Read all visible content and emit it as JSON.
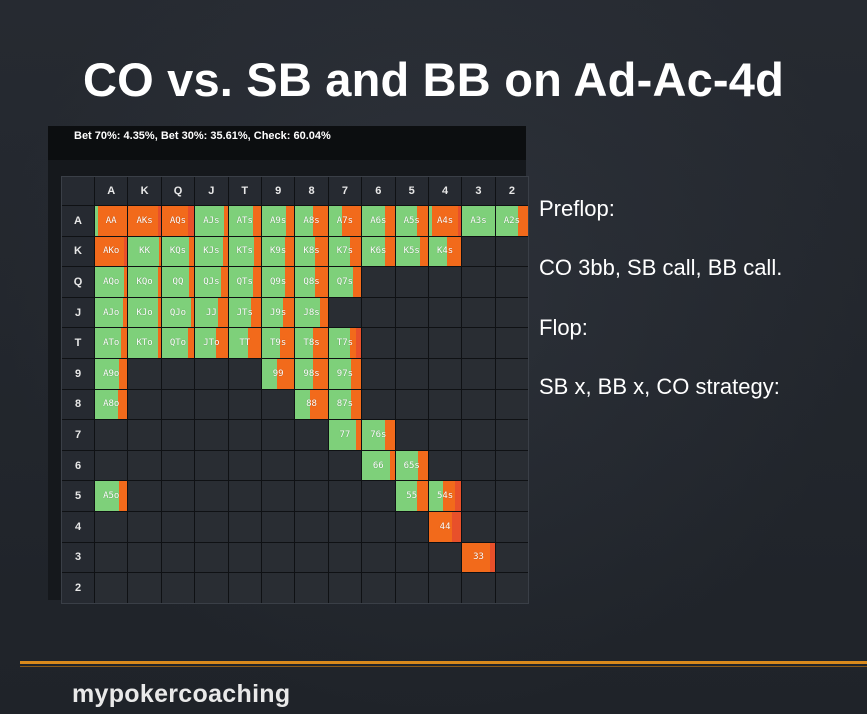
{
  "slide": {
    "title": "CO vs. SB and BB on Ad-Ac-4d",
    "brand": "mypokercoaching"
  },
  "colors": {
    "bet70": "#e8502a",
    "bet30": "#f26a1b",
    "check": "#7ed07a",
    "accent_line": "#d98a1c"
  },
  "strategy_panel": {
    "summary": "Bet 70%: 4.35%, Bet 30%: 35.61%, Check: 60.04%",
    "ranks": [
      "A",
      "K",
      "Q",
      "J",
      "T",
      "9",
      "8",
      "7",
      "6",
      "5",
      "4",
      "3",
      "2"
    ],
    "cells": [
      {
        "hand": "AA",
        "r": 0,
        "c": 0,
        "mix": [
          0,
          0.9,
          0.1
        ]
      },
      {
        "hand": "AKs",
        "r": 0,
        "c": 1,
        "mix": [
          0.1,
          0.9,
          0
        ]
      },
      {
        "hand": "AQs",
        "r": 0,
        "c": 2,
        "mix": [
          0.2,
          0.8,
          0
        ]
      },
      {
        "hand": "AJs",
        "r": 0,
        "c": 3,
        "mix": [
          0,
          0.1,
          0.9
        ]
      },
      {
        "hand": "ATs",
        "r": 0,
        "c": 4,
        "mix": [
          0,
          0.25,
          0.75
        ]
      },
      {
        "hand": "A9s",
        "r": 0,
        "c": 5,
        "mix": [
          0,
          0.25,
          0.75
        ]
      },
      {
        "hand": "A8s",
        "r": 0,
        "c": 6,
        "mix": [
          0,
          0.45,
          0.55
        ]
      },
      {
        "hand": "A7s",
        "r": 0,
        "c": 7,
        "mix": [
          0,
          0.6,
          0.4
        ]
      },
      {
        "hand": "A6s",
        "r": 0,
        "c": 8,
        "mix": [
          0,
          0.3,
          0.7
        ]
      },
      {
        "hand": "A5s",
        "r": 0,
        "c": 9,
        "mix": [
          0,
          0.35,
          0.65
        ]
      },
      {
        "hand": "A4s",
        "r": 0,
        "c": 10,
        "mix": [
          0.1,
          0.8,
          0.1
        ]
      },
      {
        "hand": "A3s",
        "r": 0,
        "c": 11,
        "mix": [
          0,
          0,
          1
        ]
      },
      {
        "hand": "A2s",
        "r": 0,
        "c": 12,
        "mix": [
          0,
          0.3,
          0.7
        ]
      },
      {
        "hand": "AKo",
        "r": 1,
        "c": 0,
        "mix": [
          0.1,
          0.9,
          0
        ]
      },
      {
        "hand": "KK",
        "r": 1,
        "c": 1,
        "mix": [
          0,
          0.05,
          0.95
        ]
      },
      {
        "hand": "KQs",
        "r": 1,
        "c": 2,
        "mix": [
          0,
          0.15,
          0.85
        ]
      },
      {
        "hand": "KJs",
        "r": 1,
        "c": 3,
        "mix": [
          0,
          0.15,
          0.85
        ]
      },
      {
        "hand": "KTs",
        "r": 1,
        "c": 4,
        "mix": [
          0,
          0.2,
          0.8
        ]
      },
      {
        "hand": "K9s",
        "r": 1,
        "c": 5,
        "mix": [
          0,
          0.3,
          0.7
        ]
      },
      {
        "hand": "K8s",
        "r": 1,
        "c": 6,
        "mix": [
          0,
          0.4,
          0.6
        ]
      },
      {
        "hand": "K7s",
        "r": 1,
        "c": 7,
        "mix": [
          0,
          0.35,
          0.65
        ]
      },
      {
        "hand": "K6s",
        "r": 1,
        "c": 8,
        "mix": [
          0,
          0.3,
          0.7
        ]
      },
      {
        "hand": "K5s",
        "r": 1,
        "c": 9,
        "mix": [
          0,
          0.25,
          0.75
        ]
      },
      {
        "hand": "K4s",
        "r": 1,
        "c": 10,
        "mix": [
          0,
          0.45,
          0.55
        ]
      },
      {
        "hand": "AQo",
        "r": 2,
        "c": 0,
        "mix": [
          0,
          0.1,
          0.9
        ]
      },
      {
        "hand": "KQo",
        "r": 2,
        "c": 1,
        "mix": [
          0,
          0.1,
          0.9
        ]
      },
      {
        "hand": "QQ",
        "r": 2,
        "c": 2,
        "mix": [
          0,
          0.15,
          0.85
        ]
      },
      {
        "hand": "QJs",
        "r": 2,
        "c": 3,
        "mix": [
          0,
          0.2,
          0.8
        ]
      },
      {
        "hand": "QTs",
        "r": 2,
        "c": 4,
        "mix": [
          0,
          0.25,
          0.75
        ]
      },
      {
        "hand": "Q9s",
        "r": 2,
        "c": 5,
        "mix": [
          0,
          0.3,
          0.7
        ]
      },
      {
        "hand": "Q8s",
        "r": 2,
        "c": 6,
        "mix": [
          0,
          0.4,
          0.6
        ]
      },
      {
        "hand": "Q7s",
        "r": 2,
        "c": 7,
        "mix": [
          0,
          0.25,
          0.75
        ]
      },
      {
        "hand": "AJo",
        "r": 3,
        "c": 0,
        "mix": [
          0,
          0.15,
          0.85
        ]
      },
      {
        "hand": "KJo",
        "r": 3,
        "c": 1,
        "mix": [
          0,
          0.1,
          0.9
        ]
      },
      {
        "hand": "QJo",
        "r": 3,
        "c": 2,
        "mix": [
          0,
          0.1,
          0.9
        ]
      },
      {
        "hand": "JJ",
        "r": 3,
        "c": 3,
        "mix": [
          0,
          0.3,
          0.7
        ]
      },
      {
        "hand": "JTs",
        "r": 3,
        "c": 4,
        "mix": [
          0,
          0.3,
          0.7
        ]
      },
      {
        "hand": "J9s",
        "r": 3,
        "c": 5,
        "mix": [
          0,
          0.35,
          0.65
        ]
      },
      {
        "hand": "J8s",
        "r": 3,
        "c": 6,
        "mix": [
          0,
          0.25,
          0.75
        ]
      },
      {
        "hand": "ATo",
        "r": 4,
        "c": 0,
        "mix": [
          0,
          0.2,
          0.8
        ]
      },
      {
        "hand": "KTo",
        "r": 4,
        "c": 1,
        "mix": [
          0,
          0.1,
          0.9
        ]
      },
      {
        "hand": "QTo",
        "r": 4,
        "c": 2,
        "mix": [
          0,
          0.2,
          0.8
        ]
      },
      {
        "hand": "JTo",
        "r": 4,
        "c": 3,
        "mix": [
          0,
          0.35,
          0.65
        ]
      },
      {
        "hand": "TT",
        "r": 4,
        "c": 4,
        "mix": [
          0,
          0.4,
          0.6
        ]
      },
      {
        "hand": "T9s",
        "r": 4,
        "c": 5,
        "mix": [
          0,
          0.45,
          0.55
        ]
      },
      {
        "hand": "T8s",
        "r": 4,
        "c": 6,
        "mix": [
          0,
          0.45,
          0.55
        ]
      },
      {
        "hand": "T7s",
        "r": 4,
        "c": 7,
        "mix": [
          0.15,
          0.2,
          0.65
        ]
      },
      {
        "hand": "A9o",
        "r": 5,
        "c": 0,
        "mix": [
          0,
          0.25,
          0.75
        ]
      },
      {
        "hand": "99",
        "r": 5,
        "c": 5,
        "mix": [
          0,
          0.55,
          0.45
        ]
      },
      {
        "hand": "98s",
        "r": 5,
        "c": 6,
        "mix": [
          0,
          0.45,
          0.55
        ]
      },
      {
        "hand": "97s",
        "r": 5,
        "c": 7,
        "mix": [
          0,
          0.3,
          0.7
        ]
      },
      {
        "hand": "A8o",
        "r": 6,
        "c": 0,
        "mix": [
          0,
          0.3,
          0.7
        ]
      },
      {
        "hand": "88",
        "r": 6,
        "c": 6,
        "mix": [
          0,
          0.55,
          0.45
        ]
      },
      {
        "hand": "87s",
        "r": 6,
        "c": 7,
        "mix": [
          0,
          0.3,
          0.7
        ]
      },
      {
        "hand": "77",
        "r": 7,
        "c": 7,
        "mix": [
          0,
          0.15,
          0.85
        ]
      },
      {
        "hand": "76s",
        "r": 7,
        "c": 8,
        "mix": [
          0,
          0.3,
          0.7
        ]
      },
      {
        "hand": "66",
        "r": 8,
        "c": 8,
        "mix": [
          0,
          0.15,
          0.85
        ]
      },
      {
        "hand": "65s",
        "r": 8,
        "c": 9,
        "mix": [
          0,
          0.3,
          0.7
        ]
      },
      {
        "hand": "A5o",
        "r": 9,
        "c": 0,
        "mix": [
          0,
          0.25,
          0.75
        ]
      },
      {
        "hand": "55",
        "r": 9,
        "c": 9,
        "mix": [
          0,
          0.35,
          0.65
        ]
      },
      {
        "hand": "54s",
        "r": 9,
        "c": 10,
        "mix": [
          0.2,
          0.35,
          0.45
        ]
      },
      {
        "hand": "44",
        "r": 10,
        "c": 10,
        "mix": [
          0.3,
          0.7,
          0
        ]
      },
      {
        "hand": "33",
        "r": 11,
        "c": 11,
        "mix": [
          0.15,
          0.85,
          0
        ]
      }
    ]
  },
  "notes": {
    "preflop_label": "Preflop:",
    "preflop_action": "CO 3bb, SB call, BB call.",
    "flop_label": "Flop:",
    "flop_action": "SB x, BB x, CO strategy:"
  }
}
